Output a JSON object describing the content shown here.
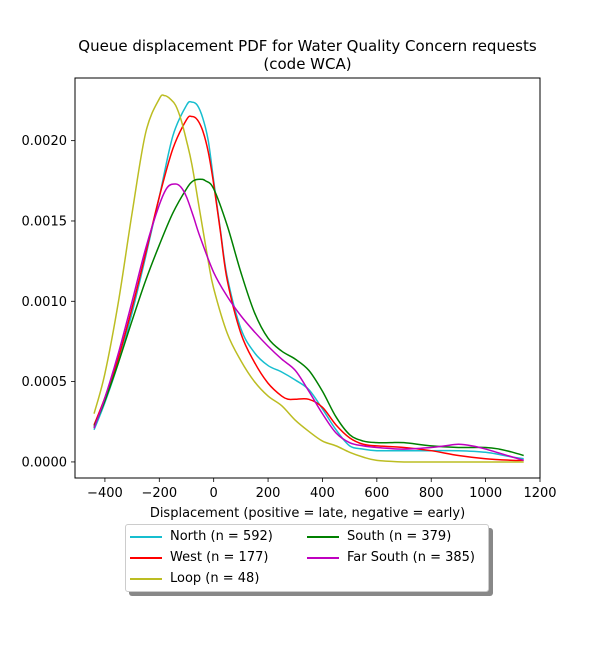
{
  "chart_data": {
    "type": "line",
    "title_line1": "Queue displacement PDF for Water Quality Concern  requests",
    "title_line2": "(code WCA)",
    "xlabel": "Displacement (positive = late, negative = early)",
    "ylabel": "",
    "xlim": [
      -510,
      1200
    ],
    "ylim": [
      -0.0001,
      0.00239
    ],
    "xticks": [
      -400,
      -200,
      0,
      200,
      400,
      600,
      800,
      1000,
      1200
    ],
    "xtick_labels": [
      "−400",
      "−200",
      "0",
      "200",
      "400",
      "600",
      "800",
      "1000",
      "1200"
    ],
    "yticks": [
      0.0,
      0.0005,
      0.001,
      0.0015,
      0.002
    ],
    "ytick_labels": [
      "0.0000",
      "0.0005",
      "0.0010",
      "0.0015",
      "0.0020"
    ],
    "grid": false,
    "legend_position": "bottom, below the axes",
    "series": [
      {
        "name": "North (n = 592)",
        "color": "#17becf",
        "x": [
          -440,
          -400,
          -350,
          -300,
          -250,
          -200,
          -150,
          -100,
          -80,
          -60,
          -40,
          -20,
          0,
          25,
          50,
          100,
          150,
          200,
          250,
          300,
          350,
          400,
          450,
          500,
          550,
          600,
          700,
          800,
          900,
          1000,
          1100,
          1140
        ],
        "y": [
          0.0002,
          0.00037,
          0.00062,
          0.00093,
          0.00128,
          0.00165,
          0.00203,
          0.00222,
          0.00224,
          0.00222,
          0.00214,
          0.002,
          0.00175,
          0.00144,
          0.00115,
          0.00083,
          0.00068,
          0.0006,
          0.00056,
          0.00051,
          0.00045,
          0.00033,
          0.0002,
          0.0001,
          8e-05,
          7e-05,
          7e-05,
          7e-05,
          7e-05,
          6e-05,
          3e-05,
          2e-05
        ]
      },
      {
        "name": "West (n = 177)",
        "color": "#ff0000",
        "x": [
          -440,
          -400,
          -350,
          -300,
          -250,
          -200,
          -150,
          -100,
          -80,
          -60,
          -40,
          -20,
          0,
          25,
          50,
          100,
          150,
          200,
          250,
          275,
          300,
          350,
          400,
          450,
          500,
          550,
          600,
          700,
          800,
          900,
          1000,
          1100,
          1140
        ],
        "y": [
          0.00023,
          0.0004,
          0.00065,
          0.00096,
          0.0013,
          0.00165,
          0.00195,
          0.00213,
          0.00215,
          0.00213,
          0.00206,
          0.00193,
          0.00173,
          0.00143,
          0.00113,
          0.0008,
          0.00062,
          0.00049,
          0.00041,
          0.00039,
          0.00039,
          0.00039,
          0.00034,
          0.00023,
          0.00015,
          0.00011,
          0.0001,
          9e-05,
          7e-05,
          4e-05,
          2e-05,
          1e-05,
          1e-05
        ]
      },
      {
        "name": "Loop (n = 48)",
        "color": "#bcbd22",
        "x": [
          -440,
          -400,
          -350,
          -300,
          -250,
          -200,
          -180,
          -160,
          -140,
          -120,
          -100,
          -80,
          -50,
          -20,
          0,
          50,
          100,
          150,
          200,
          250,
          300,
          350,
          400,
          450,
          500,
          550,
          600,
          700,
          800,
          900,
          1000,
          1100,
          1140
        ],
        "y": [
          0.0003,
          0.00055,
          0.001,
          0.00155,
          0.00205,
          0.00226,
          0.00228,
          0.00226,
          0.00222,
          0.00213,
          0.002,
          0.00185,
          0.00155,
          0.00125,
          0.00108,
          0.0008,
          0.00063,
          0.0005,
          0.00041,
          0.00035,
          0.00026,
          0.00019,
          0.00013,
          0.0001,
          6e-05,
          3e-05,
          1e-05,
          0.0,
          0.0,
          0.0,
          0.0,
          0.0,
          0.0
        ]
      },
      {
        "name": "South (n = 379)",
        "color": "#008000",
        "x": [
          -440,
          -400,
          -350,
          -300,
          -250,
          -200,
          -150,
          -100,
          -75,
          -50,
          -30,
          0,
          50,
          100,
          150,
          200,
          250,
          300,
          350,
          400,
          450,
          500,
          550,
          600,
          650,
          700,
          800,
          900,
          1000,
          1050,
          1100,
          1140
        ],
        "y": [
          0.00022,
          0.00038,
          0.00062,
          0.00088,
          0.00113,
          0.00135,
          0.00155,
          0.0017,
          0.00175,
          0.00176,
          0.00175,
          0.0017,
          0.00147,
          0.00118,
          0.00093,
          0.00077,
          0.00069,
          0.00064,
          0.00057,
          0.00044,
          0.00028,
          0.00017,
          0.00013,
          0.00012,
          0.00012,
          0.00012,
          0.0001,
          9e-05,
          9e-05,
          8e-05,
          6e-05,
          4e-05
        ]
      },
      {
        "name": "Far South (n = 385)",
        "color": "#bf00bf",
        "x": [
          -440,
          -400,
          -350,
          -300,
          -250,
          -200,
          -170,
          -140,
          -120,
          -100,
          -75,
          -50,
          0,
          50,
          100,
          150,
          200,
          250,
          300,
          350,
          400,
          450,
          500,
          550,
          600,
          700,
          800,
          850,
          900,
          950,
          1000,
          1100,
          1140
        ],
        "y": [
          0.00021,
          0.0004,
          0.00068,
          0.001,
          0.00133,
          0.0016,
          0.00171,
          0.00173,
          0.00171,
          0.00165,
          0.00153,
          0.0014,
          0.00118,
          0.00103,
          0.00091,
          0.00081,
          0.00072,
          0.00064,
          0.00057,
          0.00044,
          0.0003,
          0.00018,
          0.00012,
          0.0001,
          9e-05,
          8e-05,
          9e-05,
          0.0001,
          0.00011,
          0.0001,
          8e-05,
          3e-05,
          1e-05
        ]
      }
    ]
  }
}
